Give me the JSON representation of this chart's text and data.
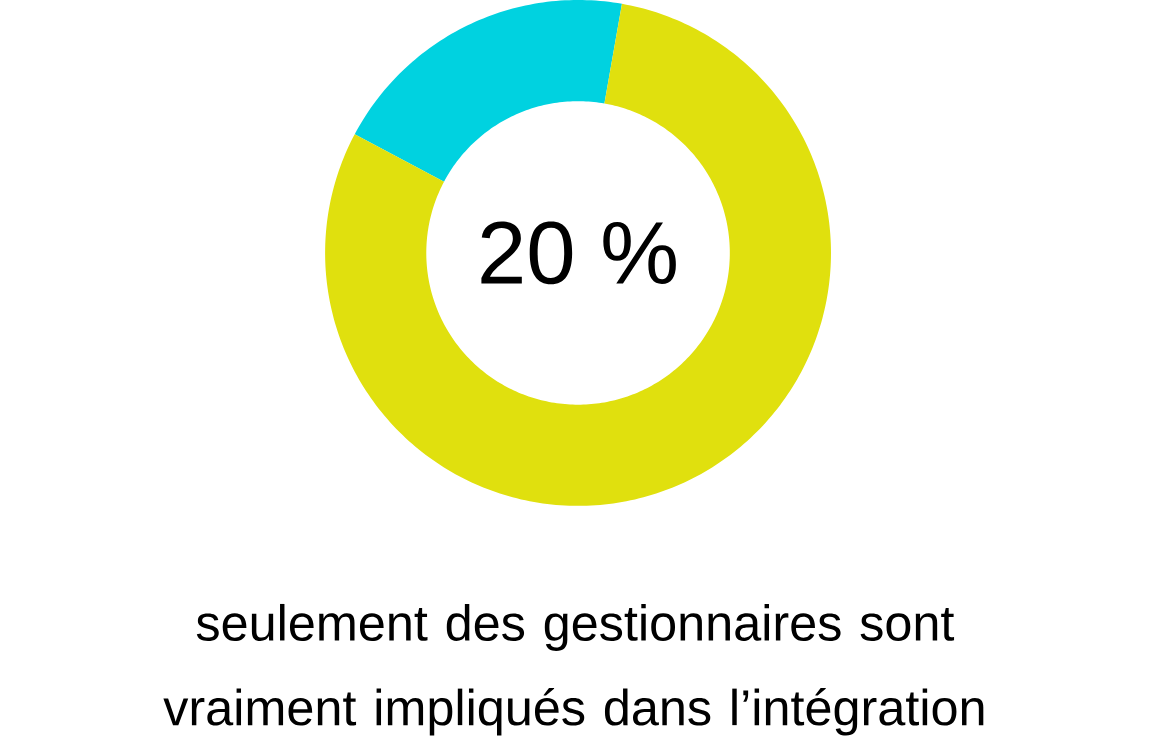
{
  "chart_data": {
    "type": "donut",
    "categories": [
      null,
      null
    ],
    "values": [
      20,
      80
    ],
    "colors": [
      "#00d2e0",
      "#e0e00e"
    ],
    "annotations": [
      "20 %",
      "seulement des gestionnaires sont vraiment impliqués dans l’intégration"
    ]
  }
}
